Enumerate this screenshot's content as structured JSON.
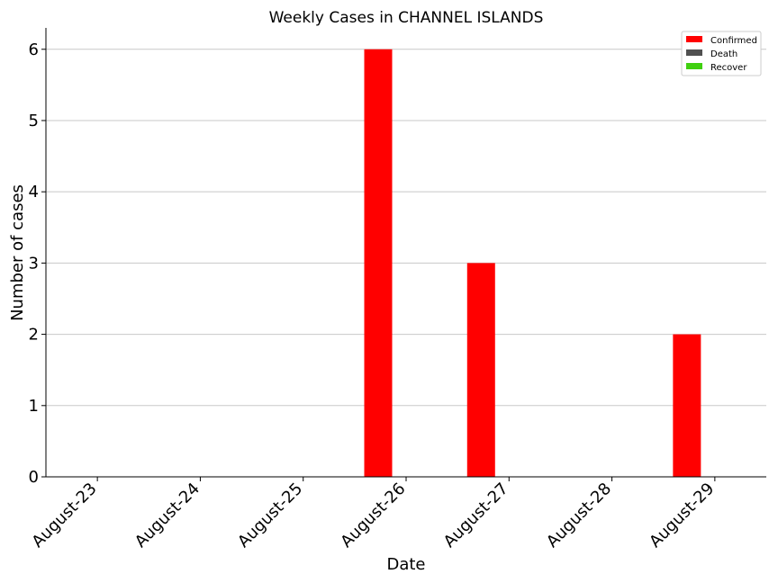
{
  "chart_data": {
    "type": "bar",
    "title": "Weekly Cases in CHANNEL ISLANDS",
    "xlabel": "Date",
    "ylabel": "Number of cases",
    "categories": [
      "August-23",
      "August-24",
      "August-25",
      "August-26",
      "August-27",
      "August-28",
      "August-29"
    ],
    "series": [
      {
        "name": "Confirmed",
        "color": "#ff0000",
        "values": [
          0,
          0,
          0,
          6,
          3,
          0,
          2
        ]
      },
      {
        "name": "Death",
        "color": "#505050",
        "values": [
          0,
          0,
          0,
          0,
          0,
          0,
          0
        ]
      },
      {
        "name": "Recover",
        "color": "#40d010",
        "values": [
          0,
          0,
          0,
          0,
          0,
          0,
          0
        ]
      }
    ],
    "ylim": [
      0,
      6.3
    ],
    "yticks": [
      0,
      1,
      2,
      3,
      4,
      5,
      6
    ],
    "grid": "horizontal",
    "legend_position": "top-right"
  }
}
